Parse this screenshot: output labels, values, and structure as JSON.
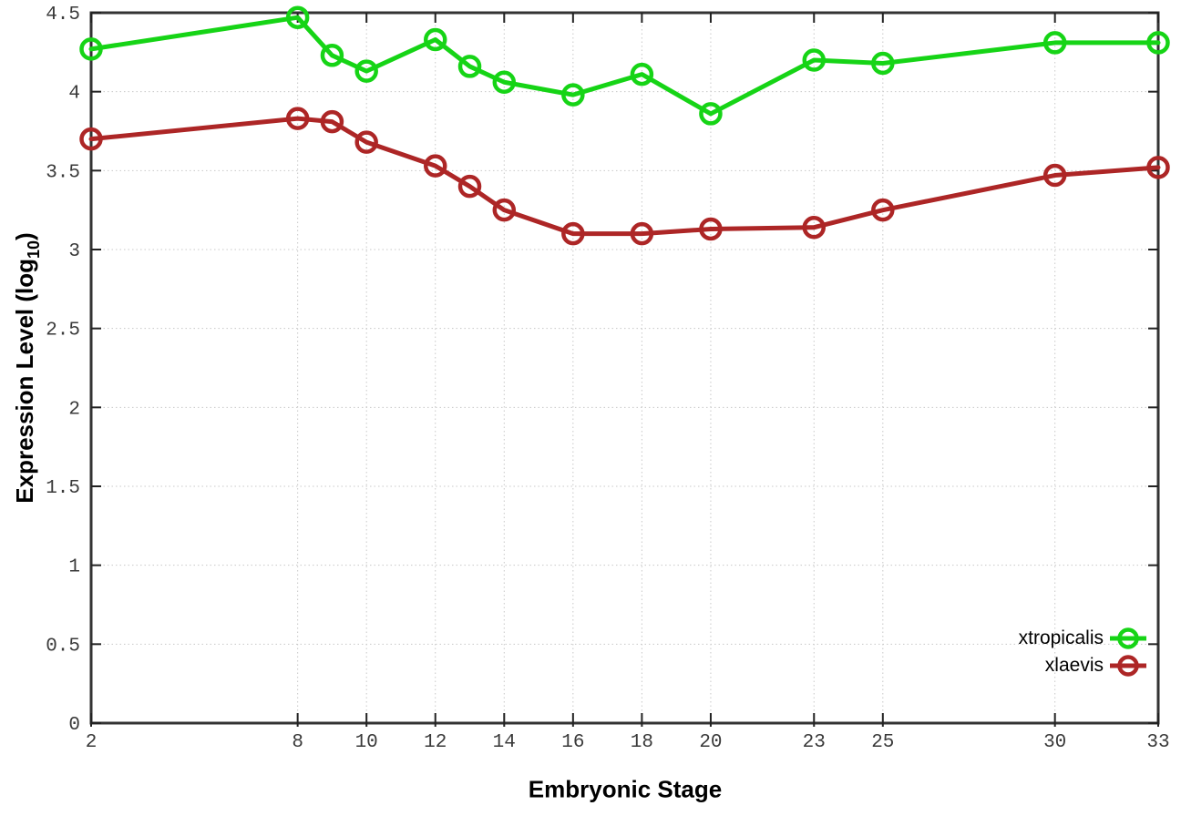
{
  "chart_data": {
    "type": "line",
    "title": "",
    "xlabel": "Embryonic Stage",
    "ylabel_main": "Expression Level (log",
    "ylabel_sub": "10",
    "ylabel_close": ")",
    "x": [
      2,
      8,
      9,
      10,
      12,
      13,
      14,
      16,
      18,
      20,
      23,
      25,
      30,
      33
    ],
    "series": [
      {
        "name": "xtropicalis",
        "color": "#16d416",
        "values": [
          4.27,
          4.47,
          4.23,
          4.13,
          4.33,
          4.16,
          4.06,
          3.98,
          4.11,
          3.86,
          4.2,
          4.18,
          4.31,
          4.31
        ]
      },
      {
        "name": "xlaevis",
        "color": "#ad2626",
        "values": [
          3.7,
          3.83,
          3.81,
          3.68,
          3.53,
          3.4,
          3.25,
          3.1,
          3.1,
          3.13,
          3.14,
          3.25,
          3.47,
          3.52
        ]
      }
    ],
    "xticks": [
      2,
      8,
      10,
      12,
      14,
      16,
      18,
      20,
      23,
      25,
      30,
      33
    ],
    "yticks": [
      0,
      0.5,
      1,
      1.5,
      2,
      2.5,
      3,
      3.5,
      4,
      4.5
    ],
    "xlim": [
      2,
      33
    ],
    "ylim": [
      0,
      4.5
    ],
    "grid": true,
    "legend_position": "bottom-right",
    "marker": "open-circle",
    "colors": {
      "grid": "#c8c8c8",
      "border": "#333333",
      "tick": "#222222",
      "tick_label": "#3a3a3a",
      "axis_title": "#000000",
      "legend_text": "#000000"
    }
  }
}
